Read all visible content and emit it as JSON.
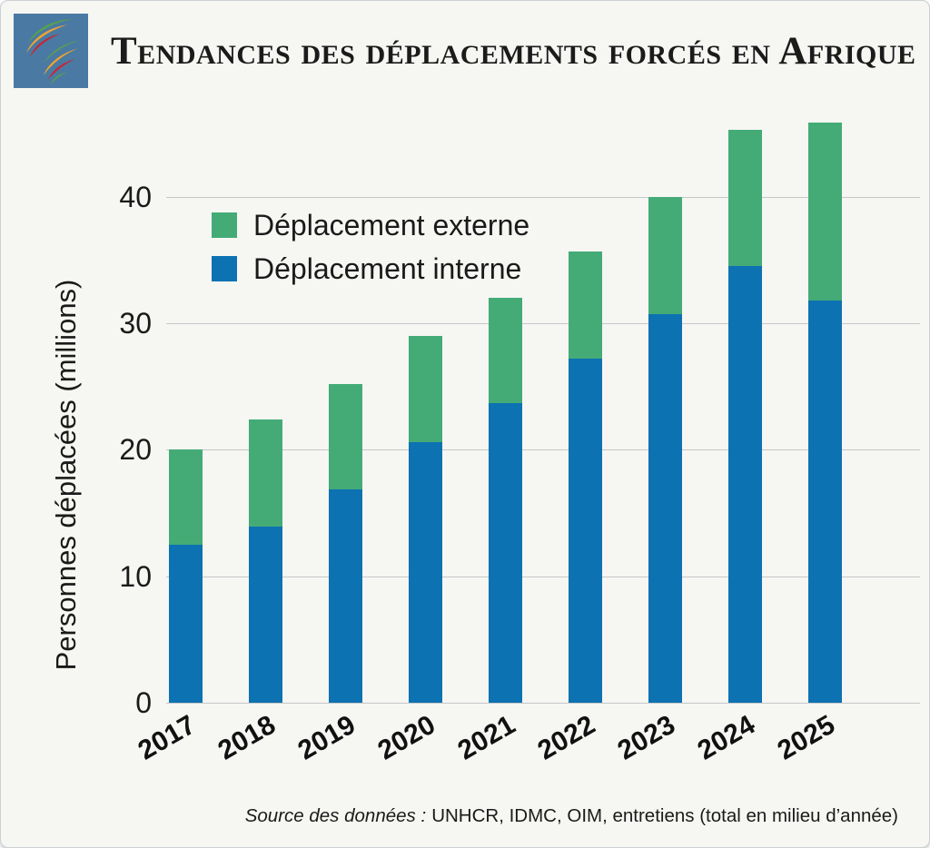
{
  "header": {
    "title": "Tendances des déplacements forcés en Afrique"
  },
  "colors": {
    "externe": "#44ab77",
    "interne": "#0d72b2",
    "gridline": "#c5c8c9",
    "card_background": "#f6f6f3",
    "logo_bg": "#4a7aa3",
    "logo_green": "#55a546",
    "logo_orange": "#f0a42e",
    "logo_red": "#cb2430"
  },
  "chart_data": {
    "type": "bar",
    "stacked": true,
    "title": "Tendances des déplacements forcés en Afrique",
    "categories": [
      "2017",
      "2018",
      "2019",
      "2020",
      "2021",
      "2022",
      "2023",
      "2024",
      "2025"
    ],
    "series": [
      {
        "name": "Déplacement externe",
        "color_key": "externe",
        "values": [
          7.5,
          8.5,
          8.3,
          8.4,
          8.3,
          8.5,
          9.3,
          10.8,
          14.1
        ]
      },
      {
        "name": "Déplacement interne",
        "color_key": "interne",
        "values": [
          12.5,
          13.9,
          16.9,
          20.6,
          23.7,
          27.2,
          30.7,
          34.5,
          31.8
        ]
      }
    ],
    "totals": [
      20.0,
      22.4,
      25.2,
      29.0,
      32.0,
      35.7,
      40.0,
      45.3,
      45.9
    ],
    "xlabel": "",
    "ylabel": "Personnes déplacées (millions)",
    "yticks": [
      0,
      10,
      20,
      30,
      40
    ],
    "ylim": [
      0,
      46.9
    ],
    "grid": true,
    "legend_position": "top-left-inside"
  },
  "source": {
    "label_italic": "Source des données :",
    "text": "UNHCR, IDMC, OIM, entretiens (total en milieu d’année)"
  }
}
